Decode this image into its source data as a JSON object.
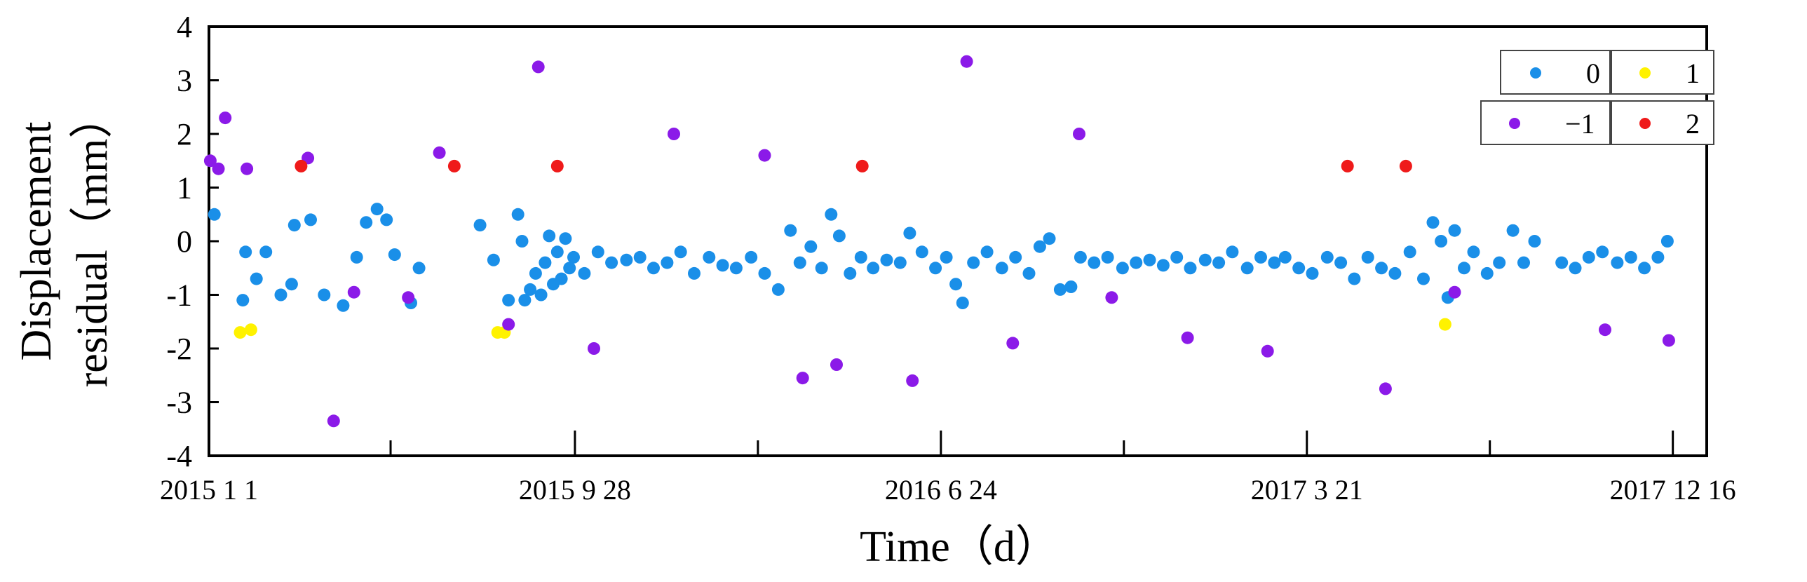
{
  "chart_data": {
    "type": "scatter",
    "title": "",
    "xlabel": "Time（d）",
    "ylabel_lines": [
      "Displacement",
      "residual（mm）"
    ],
    "xlim": [
      "2015-01-01",
      "2018-01-10"
    ],
    "ylim": [
      -4,
      4
    ],
    "y_ticks": [
      -4,
      -3,
      -2,
      -1,
      0,
      1,
      2,
      3,
      4
    ],
    "x_tick_labels": [
      {
        "date": "2015-01-01",
        "label": "2015  1  1"
      },
      {
        "date": "2015-09-28",
        "label": "2015  9  28"
      },
      {
        "date": "2016-06-24",
        "label": "2016  6  24"
      },
      {
        "date": "2017-03-21",
        "label": "2017  3  21"
      },
      {
        "date": "2017-12-16",
        "label": "2017  12  16"
      }
    ],
    "x_ticks_minor": [
      "2015-05-15",
      "2016-02-10",
      "2016-11-06",
      "2017-08-03"
    ],
    "grid": false,
    "legend": {
      "position": "top-right",
      "entries": [
        {
          "label": "0",
          "color": "#1a8fe8"
        },
        {
          "label": "1",
          "color": "#fff200"
        },
        {
          "label": "−1",
          "color": "#8b1ae8"
        },
        {
          "label": "2",
          "color": "#ef1a1a"
        }
      ]
    },
    "series": [
      {
        "name": "0",
        "color": "#1a8fe8",
        "points": [
          [
            "2015-01-05",
            0.5
          ],
          [
            "2015-01-26",
            -1.1
          ],
          [
            "2015-01-28",
            -0.2
          ],
          [
            "2015-02-05",
            -0.7
          ],
          [
            "2015-02-12",
            -0.2
          ],
          [
            "2015-02-23",
            -1.0
          ],
          [
            "2015-03-03",
            -0.8
          ],
          [
            "2015-03-05",
            0.3
          ],
          [
            "2015-03-17",
            0.4
          ],
          [
            "2015-03-27",
            -1.0
          ],
          [
            "2015-04-10",
            -1.2
          ],
          [
            "2015-04-20",
            -0.3
          ],
          [
            "2015-04-27",
            0.35
          ],
          [
            "2015-05-05",
            0.6
          ],
          [
            "2015-05-12",
            0.4
          ],
          [
            "2015-05-18",
            -0.25
          ],
          [
            "2015-05-30",
            -1.15
          ],
          [
            "2015-06-05",
            -0.5
          ],
          [
            "2015-07-20",
            0.3
          ],
          [
            "2015-07-30",
            -0.35
          ],
          [
            "2015-08-10",
            -1.1
          ],
          [
            "2015-08-17",
            0.5
          ],
          [
            "2015-08-20",
            0.0
          ],
          [
            "2015-08-22",
            -1.1
          ],
          [
            "2015-08-26",
            -0.9
          ],
          [
            "2015-08-30",
            -0.6
          ],
          [
            "2015-09-03",
            -1.0
          ],
          [
            "2015-09-06",
            -0.4
          ],
          [
            "2015-09-09",
            0.1
          ],
          [
            "2015-09-12",
            -0.8
          ],
          [
            "2015-09-15",
            -0.2
          ],
          [
            "2015-09-18",
            -0.7
          ],
          [
            "2015-09-21",
            0.05
          ],
          [
            "2015-09-24",
            -0.5
          ],
          [
            "2015-09-27",
            -0.3
          ],
          [
            "2015-10-05",
            -0.6
          ],
          [
            "2015-10-15",
            -0.2
          ],
          [
            "2015-10-25",
            -0.4
          ],
          [
            "2015-11-05",
            -0.35
          ],
          [
            "2015-11-15",
            -0.3
          ],
          [
            "2015-11-25",
            -0.5
          ],
          [
            "2015-12-05",
            -0.4
          ],
          [
            "2015-12-15",
            -0.2
          ],
          [
            "2015-12-25",
            -0.6
          ],
          [
            "2016-01-05",
            -0.3
          ],
          [
            "2016-01-15",
            -0.45
          ],
          [
            "2016-01-25",
            -0.5
          ],
          [
            "2016-02-05",
            -0.3
          ],
          [
            "2016-02-15",
            -0.6
          ],
          [
            "2016-02-25",
            -0.9
          ],
          [
            "2016-03-05",
            0.2
          ],
          [
            "2016-03-12",
            -0.4
          ],
          [
            "2016-03-20",
            -0.1
          ],
          [
            "2016-03-28",
            -0.5
          ],
          [
            "2016-04-04",
            0.5
          ],
          [
            "2016-04-10",
            0.1
          ],
          [
            "2016-04-18",
            -0.6
          ],
          [
            "2016-04-26",
            -0.3
          ],
          [
            "2016-05-05",
            -0.5
          ],
          [
            "2016-05-15",
            -0.35
          ],
          [
            "2016-05-25",
            -0.4
          ],
          [
            "2016-06-01",
            0.15
          ],
          [
            "2016-06-10",
            -0.2
          ],
          [
            "2016-06-20",
            -0.5
          ],
          [
            "2016-06-28",
            -0.3
          ],
          [
            "2016-07-05",
            -0.8
          ],
          [
            "2016-07-10",
            -1.15
          ],
          [
            "2016-07-18",
            -0.4
          ],
          [
            "2016-07-28",
            -0.2
          ],
          [
            "2016-08-08",
            -0.5
          ],
          [
            "2016-08-18",
            -0.3
          ],
          [
            "2016-08-28",
            -0.6
          ],
          [
            "2016-09-05",
            -0.1
          ],
          [
            "2016-09-12",
            0.05
          ],
          [
            "2016-09-20",
            -0.9
          ],
          [
            "2016-09-28",
            -0.85
          ],
          [
            "2016-10-05",
            -0.3
          ],
          [
            "2016-10-15",
            -0.4
          ],
          [
            "2016-10-25",
            -0.3
          ],
          [
            "2016-11-05",
            -0.5
          ],
          [
            "2016-11-15",
            -0.4
          ],
          [
            "2016-11-25",
            -0.35
          ],
          [
            "2016-12-05",
            -0.45
          ],
          [
            "2016-12-15",
            -0.3
          ],
          [
            "2016-12-25",
            -0.5
          ],
          [
            "2017-01-05",
            -0.35
          ],
          [
            "2017-01-15",
            -0.4
          ],
          [
            "2017-01-25",
            -0.2
          ],
          [
            "2017-02-05",
            -0.5
          ],
          [
            "2017-02-15",
            -0.3
          ],
          [
            "2017-02-25",
            -0.4
          ],
          [
            "2017-03-05",
            -0.3
          ],
          [
            "2017-03-15",
            -0.5
          ],
          [
            "2017-03-25",
            -0.6
          ],
          [
            "2017-04-05",
            -0.3
          ],
          [
            "2017-04-15",
            -0.4
          ],
          [
            "2017-04-25",
            -0.7
          ],
          [
            "2017-05-05",
            -0.3
          ],
          [
            "2017-05-15",
            -0.5
          ],
          [
            "2017-05-25",
            -0.6
          ],
          [
            "2017-06-05",
            -0.2
          ],
          [
            "2017-06-15",
            -0.7
          ],
          [
            "2017-06-22",
            0.35
          ],
          [
            "2017-06-28",
            0.0
          ],
          [
            "2017-07-03",
            -1.05
          ],
          [
            "2017-07-08",
            0.2
          ],
          [
            "2017-07-15",
            -0.5
          ],
          [
            "2017-07-22",
            -0.2
          ],
          [
            "2017-08-01",
            -0.6
          ],
          [
            "2017-08-10",
            -0.4
          ],
          [
            "2017-08-20",
            0.2
          ],
          [
            "2017-08-28",
            -0.4
          ],
          [
            "2017-09-05",
            0.0
          ],
          [
            "2017-09-25",
            -0.4
          ],
          [
            "2017-10-05",
            -0.5
          ],
          [
            "2017-10-15",
            -0.3
          ],
          [
            "2017-10-25",
            -0.2
          ],
          [
            "2017-11-05",
            -0.4
          ],
          [
            "2017-11-15",
            -0.3
          ],
          [
            "2017-11-25",
            -0.5
          ],
          [
            "2017-12-05",
            -0.3
          ],
          [
            "2017-12-12",
            0.0
          ]
        ]
      },
      {
        "name": "1",
        "color": "#fff200",
        "points": [
          [
            "2015-01-24",
            -1.7
          ],
          [
            "2015-02-01",
            -1.65
          ],
          [
            "2015-08-02",
            -1.7
          ],
          [
            "2015-08-07",
            -1.7
          ],
          [
            "2017-07-01",
            -1.55
          ]
        ]
      },
      {
        "name": "−1",
        "color": "#8b1ae8",
        "points": [
          [
            "2015-01-02",
            1.5
          ],
          [
            "2015-01-08",
            1.35
          ],
          [
            "2015-01-13",
            2.3
          ],
          [
            "2015-01-29",
            1.35
          ],
          [
            "2015-03-15",
            1.55
          ],
          [
            "2015-04-03",
            -3.35
          ],
          [
            "2015-04-18",
            -0.95
          ],
          [
            "2015-05-28",
            -1.05
          ],
          [
            "2015-06-20",
            1.65
          ],
          [
            "2015-08-10",
            -1.55
          ],
          [
            "2015-09-01",
            3.25
          ],
          [
            "2015-10-12",
            -2.0
          ],
          [
            "2015-12-10",
            2.0
          ],
          [
            "2016-02-15",
            1.6
          ],
          [
            "2016-03-14",
            -2.55
          ],
          [
            "2016-04-08",
            -2.3
          ],
          [
            "2016-06-03",
            -2.6
          ],
          [
            "2016-07-13",
            3.35
          ],
          [
            "2016-08-16",
            -1.9
          ],
          [
            "2016-10-04",
            2.0
          ],
          [
            "2016-10-28",
            -1.05
          ],
          [
            "2016-12-23",
            -1.8
          ],
          [
            "2017-02-20",
            -2.05
          ],
          [
            "2017-05-18",
            -2.75
          ],
          [
            "2017-07-08",
            -0.95
          ],
          [
            "2017-10-27",
            -1.65
          ],
          [
            "2017-12-13",
            -1.85
          ]
        ]
      },
      {
        "name": "2",
        "color": "#ef1a1a",
        "points": [
          [
            "2015-03-10",
            1.4
          ],
          [
            "2015-07-01",
            1.4
          ],
          [
            "2015-09-15",
            1.4
          ],
          [
            "2016-04-27",
            1.4
          ],
          [
            "2017-04-20",
            1.4
          ],
          [
            "2017-06-02",
            1.4
          ]
        ]
      }
    ]
  }
}
